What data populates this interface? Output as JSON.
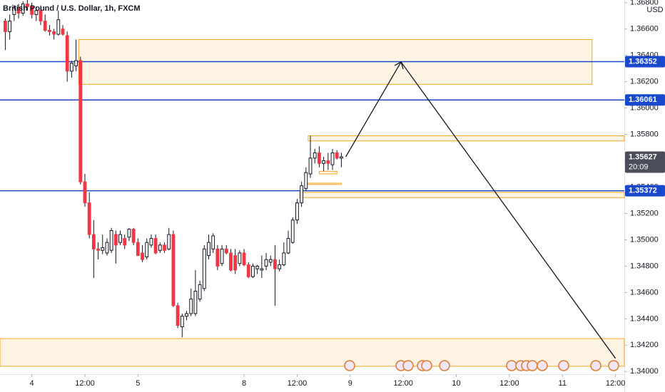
{
  "chart_data": {
    "type": "candlestick",
    "title": "British Pound / U.S. Dollar, 1h, FXCM",
    "currency": "USD",
    "countdown": "20:09",
    "up_color": "#ffffff",
    "down_color": "#f23645",
    "wick_color": "#131722",
    "xlim": [
      -0.2,
      141
    ],
    "ylim": [
      1.3398,
      1.3682
    ],
    "xticks": [
      {
        "value": 7,
        "label": "4"
      },
      {
        "value": 19,
        "label": "12:00"
      },
      {
        "value": 31,
        "label": "5"
      },
      {
        "value": 55,
        "label": "8"
      },
      {
        "value": 67,
        "label": "12:00"
      },
      {
        "value": 79,
        "label": "9"
      },
      {
        "value": 91,
        "label": "12:00"
      },
      {
        "value": 103,
        "label": "10"
      },
      {
        "value": 115,
        "label": "12:00"
      },
      {
        "value": 127,
        "label": "11"
      },
      {
        "value": 139,
        "label": "12:00"
      }
    ],
    "yticks": [
      {
        "value": 1.34,
        "label": "1.34000"
      },
      {
        "value": 1.342,
        "label": "1.34200"
      },
      {
        "value": 1.344,
        "label": "1.34400"
      },
      {
        "value": 1.346,
        "label": "1.34600"
      },
      {
        "value": 1.348,
        "label": "1.34800"
      },
      {
        "value": 1.35,
        "label": "1.35000"
      },
      {
        "value": 1.352,
        "label": "1.35200"
      },
      {
        "value": 1.354,
        "label": "1.35400"
      },
      {
        "value": 1.356,
        "label": "1.35600"
      },
      {
        "value": 1.358,
        "label": "1.35800"
      },
      {
        "value": 1.36,
        "label": "1.36000"
      },
      {
        "value": 1.362,
        "label": "1.36200"
      },
      {
        "value": 1.364,
        "label": "1.36400"
      },
      {
        "value": 1.366,
        "label": "1.36600"
      },
      {
        "value": 1.368,
        "label": "1.36800"
      }
    ],
    "grid": false,
    "x": [
      1,
      2,
      3,
      4,
      5,
      6,
      7,
      8,
      9,
      10,
      11,
      12,
      13,
      14,
      15,
      16,
      17,
      18,
      19,
      20,
      21,
      22,
      23,
      24,
      25,
      26,
      27,
      28,
      29,
      30,
      31,
      32,
      33,
      34,
      35,
      36,
      37,
      38,
      39,
      40,
      41,
      42,
      43,
      44,
      45,
      46,
      47,
      48,
      49,
      50,
      51,
      52,
      53,
      54,
      55,
      56,
      57,
      58,
      59,
      60,
      61,
      62,
      63,
      64,
      65,
      66,
      67,
      68,
      69,
      70,
      71,
      72,
      73,
      74,
      75,
      76,
      77
    ],
    "open": [
      1.3666,
      1.3658,
      1.3671,
      1.3676,
      1.3672,
      1.3679,
      1.3677,
      1.3671,
      1.3674,
      1.3666,
      1.3659,
      1.3658,
      1.3656,
      1.366,
      1.3655,
      1.3628,
      1.3632,
      1.3636,
      1.3544,
      1.3528,
      1.3504,
      1.3493,
      1.3492,
      1.349,
      1.3492,
      1.3504,
      1.3498,
      1.3501,
      1.3502,
      1.3508,
      1.3498,
      1.349,
      1.3487,
      1.3496,
      1.3501,
      1.3492,
      1.3496,
      1.3493,
      1.3504,
      1.345,
      1.3434,
      1.3442,
      1.3444,
      1.3444,
      1.3455,
      1.3463,
      1.3488,
      1.3493,
      1.3493,
      1.3482,
      1.3493,
      1.349,
      1.3488,
      1.3482,
      1.349,
      1.3481,
      1.3472,
      1.3478,
      1.3477,
      1.348,
      1.3483,
      1.3485,
      1.3478,
      1.3481,
      1.349,
      1.3498,
      1.3515,
      1.3528,
      1.3539,
      1.355,
      1.3562,
      1.3566,
      1.3558,
      1.356,
      1.3557,
      1.3566,
      1.3562
    ],
    "high": [
      1.3668,
      1.3671,
      1.3678,
      1.3679,
      1.3681,
      1.3682,
      1.368,
      1.3677,
      1.3678,
      1.3671,
      1.3663,
      1.366,
      1.3674,
      1.3663,
      1.3658,
      1.3636,
      1.3652,
      1.3639,
      1.355,
      1.3536,
      1.3515,
      1.3498,
      1.3504,
      1.3501,
      1.3509,
      1.3507,
      1.3507,
      1.3504,
      1.3509,
      1.3509,
      1.3501,
      1.3496,
      1.3501,
      1.3504,
      1.3504,
      1.3498,
      1.3498,
      1.3509,
      1.3507,
      1.3452,
      1.3444,
      1.3446,
      1.3463,
      1.3477,
      1.3469,
      1.3496,
      1.3504,
      1.3505,
      1.3496,
      1.3496,
      1.3496,
      1.3493,
      1.3493,
      1.3492,
      1.3493,
      1.3483,
      1.3482,
      1.3481,
      1.3488,
      1.349,
      1.3488,
      1.3496,
      1.3485,
      1.3498,
      1.3507,
      1.3517,
      1.3531,
      1.3544,
      1.3555,
      1.3579,
      1.3569,
      1.3571,
      1.3563,
      1.3566,
      1.3569,
      1.3568,
      1.3566
    ],
    "low": [
      1.3644,
      1.3652,
      1.3666,
      1.3668,
      1.367,
      1.3674,
      1.3668,
      1.3666,
      1.3663,
      1.3658,
      1.3655,
      1.3652,
      1.3655,
      1.3655,
      1.362,
      1.3623,
      1.3628,
      1.3542,
      1.3525,
      1.3501,
      1.3471,
      1.3485,
      1.3489,
      1.3488,
      1.349,
      1.3482,
      1.3496,
      1.3493,
      1.3499,
      1.3496,
      1.3488,
      1.3483,
      1.3485,
      1.3494,
      1.3489,
      1.349,
      1.349,
      1.3492,
      1.3449,
      1.3433,
      1.3426,
      1.3439,
      1.3442,
      1.3442,
      1.3453,
      1.3461,
      1.3485,
      1.349,
      1.3477,
      1.348,
      1.3489,
      1.3476,
      1.3474,
      1.348,
      1.348,
      1.3471,
      1.3471,
      1.3474,
      1.3471,
      1.3477,
      1.348,
      1.345,
      1.3476,
      1.348,
      1.3489,
      1.3497,
      1.3512,
      1.3525,
      1.3537,
      1.3547,
      1.3558,
      1.3555,
      1.3552,
      1.3553,
      1.3553,
      1.3561,
      1.3555
    ],
    "close": [
      1.3658,
      1.3666,
      1.3676,
      1.3672,
      1.3679,
      1.3677,
      1.3671,
      1.3674,
      1.3666,
      1.3659,
      1.3658,
      1.3656,
      1.3667,
      1.3656,
      1.3628,
      1.3634,
      1.3636,
      1.3544,
      1.3528,
      1.3504,
      1.3493,
      1.3492,
      1.3494,
      1.3498,
      1.3507,
      1.3496,
      1.3504,
      1.3496,
      1.3508,
      1.3498,
      1.3488,
      1.3485,
      1.3498,
      1.3501,
      1.349,
      1.3496,
      1.3492,
      1.3504,
      1.345,
      1.3435,
      1.3442,
      1.3444,
      1.3455,
      1.3461,
      1.3466,
      1.3493,
      1.3498,
      1.3503,
      1.348,
      1.3493,
      1.349,
      1.3477,
      1.3477,
      1.349,
      1.3481,
      1.3472,
      1.348,
      1.348,
      1.3478,
      1.3485,
      1.3485,
      1.3478,
      1.3481,
      1.349,
      1.3501,
      1.3515,
      1.3528,
      1.3541,
      1.3551,
      1.3562,
      1.3566,
      1.3558,
      1.356,
      1.3558,
      1.3566,
      1.3562,
      1.3563
    ],
    "zone_color": "#f5a623",
    "zones": [
      {
        "x": [
          17.6,
          133.7
        ],
        "y": [
          1.3618,
          1.3652
        ]
      },
      {
        "x": [
          69.5,
          141
        ],
        "y": [
          1.3575,
          1.3579
        ]
      },
      {
        "x": [
          72,
          76
        ],
        "y": [
          1.355,
          1.3552
        ]
      },
      {
        "x": [
          69.5,
          77
        ],
        "y": [
          1.3542,
          1.3543
        ]
      },
      {
        "x": [
          67.6,
          141
        ],
        "y": [
          1.3532,
          1.3536
        ]
      },
      {
        "x": [
          -0.2,
          141
        ],
        "y": [
          1.3404,
          1.3425
        ]
      }
    ],
    "line_color": "#1848cc",
    "hlines": [
      1.36352,
      1.36061,
      1.35372
    ],
    "last_price": 1.35627,
    "last_price_color": "#4a4e5a",
    "drawing": {
      "x": [
        78,
        90.5,
        139
      ],
      "y": [
        1.3563,
        1.3635,
        1.341
      ]
    }
  }
}
